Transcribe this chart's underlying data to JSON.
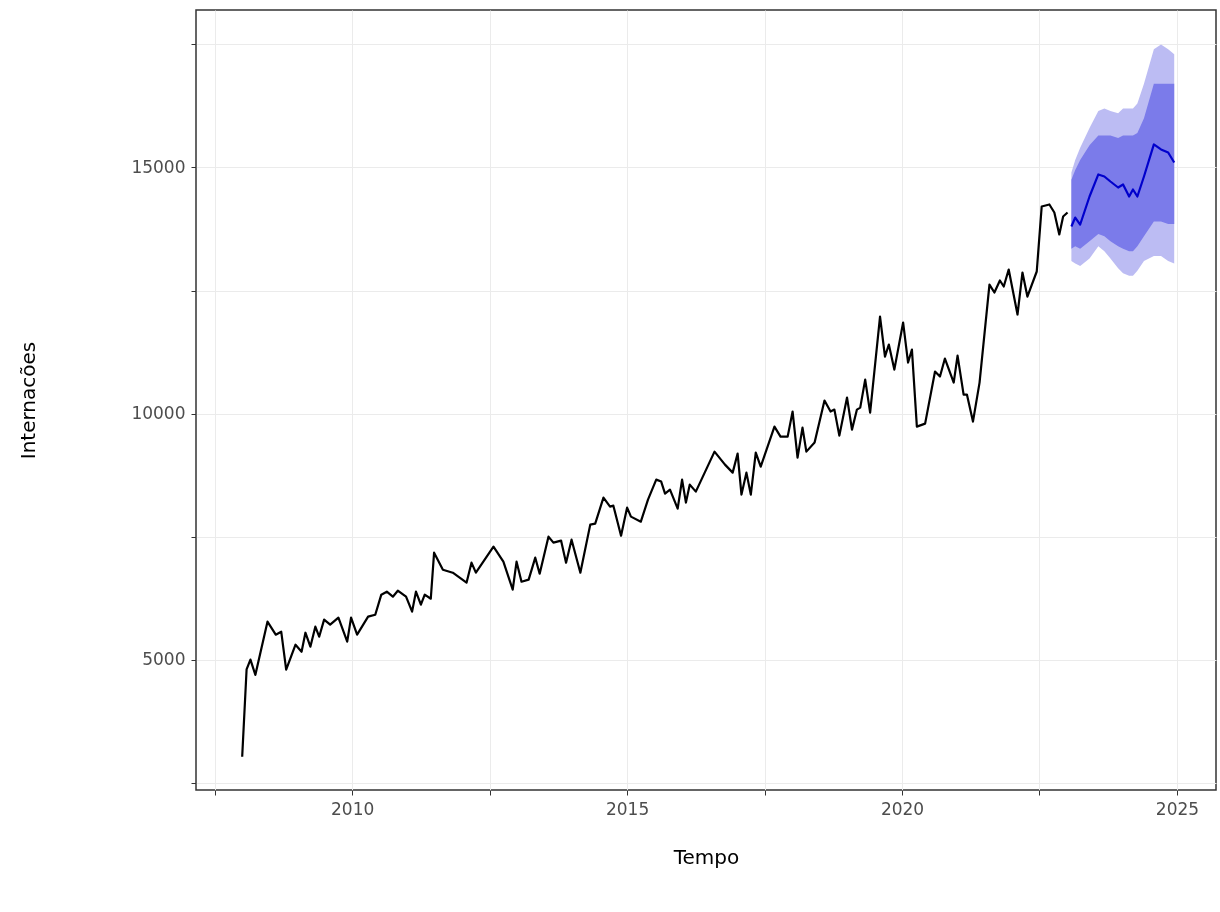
{
  "chart_data": {
    "type": "line",
    "xlabel": "Tempo",
    "ylabel": "Internacões",
    "xlim": [
      2007.16,
      2025.71
    ],
    "ylim": [
      2350,
      18200
    ],
    "xticks": [
      {
        "value": 2007.5,
        "label": null
      },
      2010,
      {
        "value": 2012.5,
        "label": null
      },
      2015,
      {
        "value": 2017.5,
        "label": null
      },
      2020,
      {
        "value": 2022.5,
        "label": null
      },
      2025
    ],
    "yticks": [
      {
        "value": 2500,
        "label": null
      },
      5000,
      {
        "value": 7500,
        "label": null
      },
      10000,
      {
        "value": 12500,
        "label": null
      },
      15000,
      {
        "value": 17500,
        "label": null
      }
    ],
    "grid": true,
    "line_style": "solid",
    "series": [
      {
        "color": "#000000",
        "x": [
          2008.0,
          2008.08,
          2008.15,
          2008.24,
          2008.46,
          2008.61,
          2008.71,
          2008.8,
          2008.97,
          2009.08,
          2009.15,
          2009.24,
          2009.33,
          2009.4,
          2009.49,
          2009.6,
          2009.75,
          2009.91,
          2009.98,
          2010.09,
          2010.29,
          2010.42,
          2010.53,
          2010.63,
          2010.74,
          2010.83,
          2010.98,
          2011.09,
          2011.16,
          2011.25,
          2011.32,
          2011.43,
          2011.49,
          2011.65,
          2011.83,
          2012.08,
          2012.17,
          2012.25,
          2012.57,
          2012.75,
          2012.92,
          2012.99,
          2013.08,
          2013.21,
          2013.33,
          2013.41,
          2013.57,
          2013.66,
          2013.8,
          2013.89,
          2013.99,
          2014.15,
          2014.33,
          2014.42,
          2014.57,
          2014.69,
          2014.75,
          2014.89,
          2015.0,
          2015.07,
          2015.25,
          2015.38,
          2015.53,
          2015.62,
          2015.69,
          2015.78,
          2015.92,
          2016.0,
          2016.07,
          2016.14,
          2016.25,
          2016.59,
          2016.78,
          2016.92,
          2017.01,
          2017.08,
          2017.17,
          2017.25,
          2017.34,
          2017.43,
          2017.68,
          2017.79,
          2017.92,
          2018.01,
          2018.1,
          2018.19,
          2018.26,
          2018.41,
          2018.59,
          2018.7,
          2018.77,
          2018.86,
          2019.0,
          2019.09,
          2019.18,
          2019.24,
          2019.33,
          2019.42,
          2019.6,
          2019.69,
          2019.76,
          2019.86,
          2020.02,
          2020.11,
          2020.18,
          2020.27,
          2020.42,
          2020.6,
          2020.69,
          2020.78,
          2020.94,
          2021.01,
          2021.12,
          2021.18,
          2021.29,
          2021.41,
          2021.59,
          2021.68,
          2021.78,
          2021.85,
          2021.94,
          2022.1,
          2022.19,
          2022.28,
          2022.45,
          2022.54,
          2022.68,
          2022.77,
          2022.86,
          2022.93,
          2023.01
        ],
        "values": [
          3025,
          4800,
          5000,
          4690,
          5770,
          5506,
          5567,
          4795,
          5303,
          5160,
          5546,
          5262,
          5669,
          5465,
          5811,
          5709,
          5852,
          5364,
          5852,
          5506,
          5872,
          5912,
          6319,
          6380,
          6278,
          6400,
          6278,
          5974,
          6380,
          6115,
          6319,
          6237,
          7173,
          6827,
          6766,
          6563,
          6970,
          6766,
          7295,
          6990,
          6421,
          6990,
          6583,
          6624,
          7071,
          6746,
          7498,
          7376,
          7417,
          6970,
          7437,
          6766,
          7742,
          7763,
          8291,
          8108,
          8128,
          7518,
          8088,
          7905,
          7803,
          8251,
          8657,
          8617,
          8373,
          8454,
          8068,
          8657,
          8190,
          8556,
          8413,
          9226,
          8962,
          8799,
          9186,
          8352,
          8799,
          8352,
          9206,
          8921,
          9734,
          9531,
          9531,
          10040,
          9104,
          9714,
          9226,
          9409,
          10263,
          10040,
          10080,
          9551,
          10324,
          9673,
          10080,
          10121,
          10690,
          10019,
          11971,
          11158,
          11402,
          10893,
          11849,
          11036,
          11300,
          9734,
          9795,
          10853,
          10751,
          11117,
          10629,
          11178,
          10385,
          10385,
          9836,
          10629,
          12621,
          12459,
          12703,
          12581,
          12926,
          12012,
          12865,
          12377,
          12886,
          14207,
          14248,
          14085,
          13638,
          14004,
          14085
        ]
      },
      {
        "color": "#bcbcf3",
        "x": [
          2023.08,
          2023.15,
          2023.24,
          2023.41,
          2023.57,
          2023.68,
          2023.79,
          2023.93,
          2024.02,
          2024.13,
          2024.2,
          2024.28,
          2024.4,
          2024.58,
          2024.71,
          2024.84,
          2024.95
        ],
        "values": [
          null,
          null,
          null,
          null,
          null,
          null,
          null,
          null,
          null,
          null,
          null,
          null,
          null,
          null,
          null,
          null,
          null
        ],
        "lower": [
          13100,
          13050,
          13000,
          13150,
          13400,
          13300,
          13150,
          12950,
          12850,
          12800,
          12800,
          12900,
          13100,
          13200,
          13200,
          13100,
          13050
        ],
        "upper": [
          14900,
          15150,
          15400,
          15800,
          16150,
          16200,
          16150,
          16100,
          16200,
          16200,
          16200,
          16300,
          16700,
          17400,
          17500,
          17400,
          17300
        ]
      },
      {
        "color": "#7b7bea",
        "x": [
          2023.08,
          2023.15,
          2023.24,
          2023.41,
          2023.57,
          2023.68,
          2023.79,
          2023.93,
          2024.02,
          2024.13,
          2024.2,
          2024.28,
          2024.4,
          2024.58,
          2024.71,
          2024.84,
          2024.95
        ],
        "values": [
          null,
          null,
          null,
          null,
          null,
          null,
          null,
          null,
          null,
          null,
          null,
          null,
          null,
          null,
          null,
          null,
          null
        ],
        "lower": [
          13350,
          13400,
          13350,
          13500,
          13650,
          13600,
          13500,
          13400,
          13350,
          13300,
          13300,
          13400,
          13600,
          13900,
          13900,
          13850,
          13850
        ],
        "upper": [
          14750,
          14950,
          15150,
          15450,
          15650,
          15650,
          15650,
          15600,
          15650,
          15650,
          15650,
          15700,
          16000,
          16700,
          16700,
          16700,
          16700
        ]
      },
      {
        "color": "#0000cc",
        "x": [
          2023.08,
          2023.15,
          2023.24,
          2023.41,
          2023.57,
          2023.68,
          2023.79,
          2023.93,
          2024.02,
          2024.13,
          2024.2,
          2024.28,
          2024.4,
          2024.58,
          2024.71,
          2024.84,
          2024.95
        ],
        "values": [
          13800,
          13983,
          13841,
          14410,
          14858,
          14817,
          14715,
          14593,
          14654,
          14410,
          14553,
          14410,
          14817,
          15468,
          15366,
          15305,
          15102
        ]
      }
    ]
  }
}
